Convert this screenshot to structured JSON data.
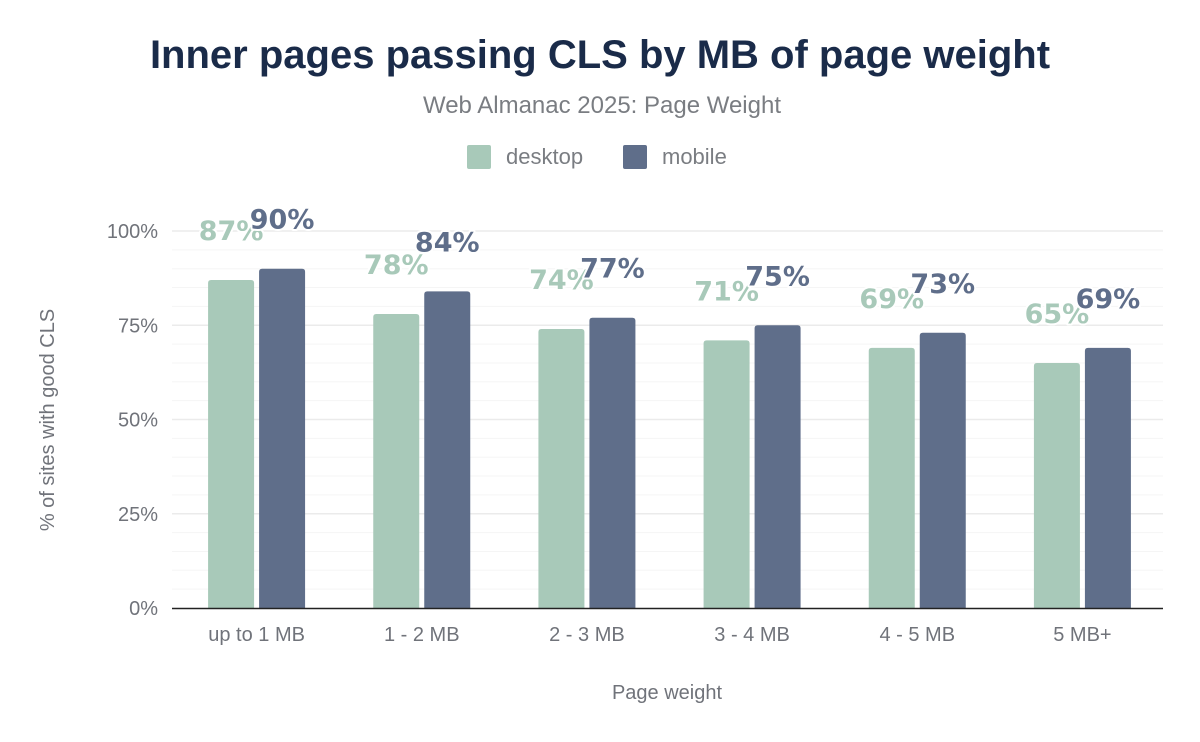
{
  "chart_data": {
    "type": "bar",
    "title": "Inner pages passing CLS by MB of page weight",
    "subtitle": "Web Almanac 2025: Page Weight",
    "xlabel": "Page weight",
    "ylabel": "% of sites with good CLS",
    "categories": [
      "up to 1 MB",
      "1 - 2 MB",
      "2 - 3 MB",
      "3 - 4 MB",
      "4 - 5 MB",
      "5 MB+"
    ],
    "series": [
      {
        "name": "desktop",
        "color": "#a8c9b9",
        "values": [
          87,
          78,
          74,
          71,
          69,
          65
        ],
        "labels": [
          "87%",
          "78%",
          "74%",
          "71%",
          "69%",
          "65%"
        ]
      },
      {
        "name": "mobile",
        "color": "#5f6e8a",
        "values": [
          90,
          84,
          77,
          75,
          73,
          69
        ],
        "labels": [
          "90%",
          "84%",
          "77%",
          "75%",
          "73%",
          "69%"
        ]
      }
    ],
    "ylim": [
      0,
      100
    ],
    "yticks": [
      0,
      25,
      50,
      75,
      100
    ],
    "ytick_labels": [
      "0%",
      "25%",
      "50%",
      "75%",
      "100%"
    ],
    "grid": true,
    "legend": "top-center"
  }
}
